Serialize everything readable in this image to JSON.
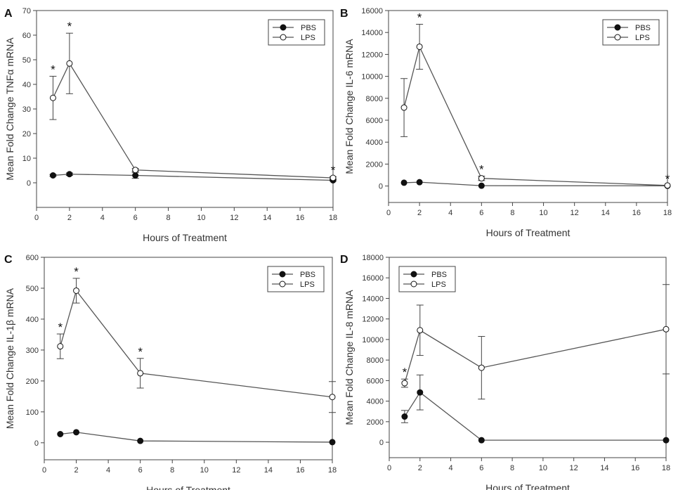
{
  "chart_data": [
    {
      "type": "line",
      "panel": "A",
      "ylabel_parts": [
        "Mean Fold Change TNF",
        "α",
        " mRNA"
      ],
      "xlabel": "Hours of Treatment",
      "xlim": [
        0,
        18
      ],
      "ylim": [
        -10,
        70
      ],
      "xticks": [
        0,
        2,
        4,
        6,
        8,
        10,
        12,
        14,
        16,
        18
      ],
      "yticks": [
        0,
        10,
        20,
        30,
        40,
        50,
        60,
        70
      ],
      "x": [
        1,
        2,
        6,
        18
      ],
      "legend": [
        "PBS",
        "LPS"
      ],
      "legend_position": "top-right",
      "series": [
        {
          "name": "PBS",
          "marker": "filled",
          "values": [
            3,
            3.5,
            3,
            1
          ],
          "errors": [
            0.4,
            0.5,
            1.2,
            0.3
          ]
        },
        {
          "name": "LPS",
          "marker": "open",
          "values": [
            34.5,
            48.5,
            5.2,
            2
          ],
          "errors": [
            8.8,
            12.3,
            0.6,
            0.5
          ]
        }
      ],
      "annotations": [
        {
          "x": 1,
          "y": 43.3,
          "text": "*"
        },
        {
          "x": 2,
          "y": 60.8,
          "text": "*"
        },
        {
          "x": 18,
          "y": 2.5,
          "text": "*"
        }
      ]
    },
    {
      "type": "line",
      "panel": "B",
      "ylabel_parts": [
        "Mean Fold Change IL-6 mRNA"
      ],
      "xlabel": "Hours of Treatment",
      "xlim": [
        0,
        18
      ],
      "ylim": [
        -1500,
        16000
      ],
      "xticks": [
        0,
        2,
        4,
        6,
        8,
        10,
        12,
        14,
        16,
        18
      ],
      "yticks": [
        0,
        2000,
        4000,
        6000,
        8000,
        10000,
        12000,
        14000,
        16000
      ],
      "x": [
        1,
        2,
        6,
        18
      ],
      "legend": [
        "PBS",
        "LPS"
      ],
      "legend_position": "top-right",
      "series": [
        {
          "name": "PBS",
          "marker": "filled",
          "values": [
            300,
            350,
            30,
            20
          ],
          "errors": [
            0,
            0,
            0,
            0
          ]
        },
        {
          "name": "LPS",
          "marker": "open",
          "values": [
            7150,
            12700,
            700,
            50
          ],
          "errors": [
            2650,
            2050,
            200,
            0
          ]
        }
      ],
      "annotations": [
        {
          "x": 2,
          "y": 14750,
          "text": "*"
        },
        {
          "x": 6,
          "y": 900,
          "text": "*"
        },
        {
          "x": 18,
          "y": 50,
          "text": "*"
        }
      ]
    },
    {
      "type": "line",
      "panel": "C",
      "ylabel_parts": [
        "Mean Fold Change IL-1",
        "β",
        " mRNA"
      ],
      "xlabel": "Hours of Treatment",
      "xlim": [
        0,
        18
      ],
      "ylim": [
        -55,
        600
      ],
      "xticks": [
        0,
        2,
        4,
        6,
        8,
        10,
        12,
        14,
        16,
        18
      ],
      "yticks": [
        0,
        100,
        200,
        300,
        400,
        500,
        600
      ],
      "x": [
        1,
        2,
        6,
        18
      ],
      "legend": [
        "PBS",
        "LPS"
      ],
      "legend_position": "top-right",
      "series": [
        {
          "name": "PBS",
          "marker": "filled",
          "values": [
            28,
            34,
            6,
            2
          ],
          "errors": [
            0,
            0,
            0,
            0
          ]
        },
        {
          "name": "LPS",
          "marker": "open",
          "values": [
            312,
            492,
            225,
            148
          ],
          "errors": [
            40,
            40,
            48,
            50
          ]
        }
      ],
      "annotations": [
        {
          "x": 1,
          "y": 352,
          "text": "*"
        },
        {
          "x": 2,
          "y": 532,
          "text": "*"
        },
        {
          "x": 6,
          "y": 273,
          "text": "*"
        }
      ]
    },
    {
      "type": "line",
      "panel": "D",
      "ylabel_parts": [
        "Mean Fold Change IL-8 mRNA"
      ],
      "xlabel": "Hours of Treatment",
      "xlim": [
        0,
        18
      ],
      "ylim": [
        -1500,
        18000
      ],
      "xticks": [
        0,
        2,
        4,
        6,
        8,
        10,
        12,
        14,
        16,
        18
      ],
      "yticks": [
        0,
        2000,
        4000,
        6000,
        8000,
        10000,
        12000,
        14000,
        16000,
        18000
      ],
      "x": [
        1,
        2,
        6,
        18
      ],
      "legend": [
        "PBS",
        "LPS"
      ],
      "legend_position": "top-left",
      "series": [
        {
          "name": "PBS",
          "marker": "filled",
          "values": [
            2500,
            4850,
            200,
            200
          ],
          "errors": [
            600,
            1700,
            0,
            0
          ]
        },
        {
          "name": "LPS",
          "marker": "open",
          "values": [
            5750,
            10900,
            7250,
            11000
          ],
          "errors": [
            400,
            2450,
            3050,
            4350
          ]
        }
      ],
      "annotations": [
        {
          "x": 1,
          "y": 6150,
          "text": "*"
        }
      ]
    }
  ]
}
